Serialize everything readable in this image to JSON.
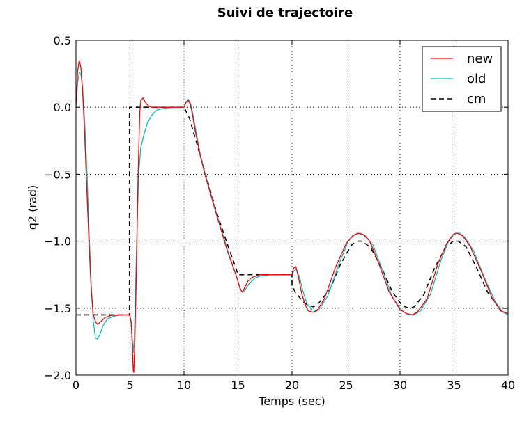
{
  "chart_data": {
    "type": "line",
    "title": "Suivi de trajectoire",
    "xlabel": "Temps (sec)",
    "ylabel": "q2 (rad)",
    "xlim": [
      0,
      40
    ],
    "ylim": [
      -2.0,
      0.5
    ],
    "x_ticks": [
      0,
      5,
      10,
      15,
      20,
      25,
      30,
      35,
      40
    ],
    "x_tick_labels": [
      "0",
      "5",
      "10",
      "15",
      "20",
      "25",
      "30",
      "35",
      "40"
    ],
    "y_ticks": [
      0.5,
      0.0,
      -0.5,
      -1.0,
      -1.5,
      -2.0
    ],
    "y_tick_labels": [
      "0.5",
      "0.0",
      "−0.5",
      "−1.0",
      "−1.5",
      "−2.0"
    ],
    "grid": true,
    "legend_position": "top-right",
    "series": [
      {
        "name": "new",
        "color": "#ff0000",
        "dash": "solid",
        "points": [
          [
            0,
            0.02
          ],
          [
            0.15,
            0.27
          ],
          [
            0.3,
            0.35
          ],
          [
            0.45,
            0.3
          ],
          [
            0.6,
            0.15
          ],
          [
            0.8,
            -0.2
          ],
          [
            1.0,
            -0.6
          ],
          [
            1.2,
            -1.0
          ],
          [
            1.4,
            -1.35
          ],
          [
            1.6,
            -1.55
          ],
          [
            1.8,
            -1.6
          ],
          [
            2.0,
            -1.62
          ],
          [
            2.3,
            -1.6
          ],
          [
            2.7,
            -1.57
          ],
          [
            3.2,
            -1.555
          ],
          [
            4.0,
            -1.55
          ],
          [
            4.9,
            -1.55
          ],
          [
            5.0,
            -1.56
          ],
          [
            5.1,
            -1.6
          ],
          [
            5.2,
            -1.75
          ],
          [
            5.3,
            -1.97
          ],
          [
            5.35,
            -1.98
          ],
          [
            5.45,
            -1.75
          ],
          [
            5.6,
            -1.2
          ],
          [
            5.75,
            -0.5
          ],
          [
            5.9,
            -0.05
          ],
          [
            6.0,
            0.05
          ],
          [
            6.2,
            0.07
          ],
          [
            6.4,
            0.04
          ],
          [
            6.7,
            0.01
          ],
          [
            7.0,
            0.0
          ],
          [
            8.0,
            0.0
          ],
          [
            9.5,
            0.0
          ],
          [
            10.0,
            0.0
          ],
          [
            10.2,
            0.04
          ],
          [
            10.4,
            0.05
          ],
          [
            10.6,
            0.02
          ],
          [
            10.8,
            -0.06
          ],
          [
            11.0,
            -0.16
          ],
          [
            11.5,
            -0.36
          ],
          [
            12.0,
            -0.52
          ],
          [
            13.0,
            -0.8
          ],
          [
            14.0,
            -1.07
          ],
          [
            14.8,
            -1.25
          ],
          [
            15.0,
            -1.3
          ],
          [
            15.2,
            -1.36
          ],
          [
            15.4,
            -1.38
          ],
          [
            15.6,
            -1.35
          ],
          [
            15.9,
            -1.3
          ],
          [
            16.3,
            -1.27
          ],
          [
            17.0,
            -1.25
          ],
          [
            18.0,
            -1.25
          ],
          [
            19.5,
            -1.25
          ],
          [
            20.0,
            -1.25
          ],
          [
            20.15,
            -1.2
          ],
          [
            20.35,
            -1.19
          ],
          [
            20.6,
            -1.27
          ],
          [
            20.9,
            -1.39
          ],
          [
            21.2,
            -1.47
          ],
          [
            21.5,
            -1.52
          ],
          [
            21.9,
            -1.53
          ],
          [
            22.3,
            -1.52
          ],
          [
            23.0,
            -1.43
          ],
          [
            24.0,
            -1.2
          ],
          [
            25.0,
            -1.02
          ],
          [
            25.6,
            -0.96
          ],
          [
            26.1,
            -0.94
          ],
          [
            26.6,
            -0.95
          ],
          [
            27.2,
            -1.0
          ],
          [
            28.0,
            -1.16
          ],
          [
            29.0,
            -1.38
          ],
          [
            30.0,
            -1.51
          ],
          [
            30.6,
            -1.54
          ],
          [
            31.1,
            -1.55
          ],
          [
            31.6,
            -1.53
          ],
          [
            32.5,
            -1.43
          ],
          [
            33.5,
            -1.17
          ],
          [
            34.3,
            -1.02
          ],
          [
            34.9,
            -0.95
          ],
          [
            35.3,
            -0.94
          ],
          [
            35.8,
            -0.96
          ],
          [
            36.5,
            -1.04
          ],
          [
            37.5,
            -1.22
          ],
          [
            38.5,
            -1.42
          ],
          [
            39.3,
            -1.52
          ],
          [
            40.0,
            -1.54
          ]
        ]
      },
      {
        "name": "old",
        "color": "#00bfbf",
        "dash": "solid",
        "points": [
          [
            0,
            0.0
          ],
          [
            0.15,
            0.18
          ],
          [
            0.3,
            0.26
          ],
          [
            0.45,
            0.25
          ],
          [
            0.6,
            0.15
          ],
          [
            0.8,
            -0.1
          ],
          [
            1.0,
            -0.45
          ],
          [
            1.2,
            -0.9
          ],
          [
            1.4,
            -1.3
          ],
          [
            1.6,
            -1.6
          ],
          [
            1.8,
            -1.72
          ],
          [
            1.95,
            -1.73
          ],
          [
            2.2,
            -1.7
          ],
          [
            2.5,
            -1.63
          ],
          [
            2.9,
            -1.58
          ],
          [
            3.5,
            -1.56
          ],
          [
            4.2,
            -1.55
          ],
          [
            4.9,
            -1.55
          ],
          [
            5.0,
            -1.56
          ],
          [
            5.1,
            -1.6
          ],
          [
            5.2,
            -1.72
          ],
          [
            5.3,
            -1.83
          ],
          [
            5.4,
            -1.72
          ],
          [
            5.5,
            -1.4
          ],
          [
            5.65,
            -0.9
          ],
          [
            5.8,
            -0.5
          ],
          [
            6.0,
            -0.3
          ],
          [
            6.3,
            -0.2
          ],
          [
            6.6,
            -0.12
          ],
          [
            7.0,
            -0.06
          ],
          [
            7.5,
            -0.02
          ],
          [
            8.0,
            -0.01
          ],
          [
            9.0,
            0.0
          ],
          [
            10.0,
            0.0
          ],
          [
            10.2,
            0.04
          ],
          [
            10.4,
            0.06
          ],
          [
            10.6,
            0.03
          ],
          [
            10.8,
            -0.04
          ],
          [
            11.0,
            -0.13
          ],
          [
            11.5,
            -0.35
          ],
          [
            12.0,
            -0.51
          ],
          [
            13.0,
            -0.79
          ],
          [
            14.0,
            -1.06
          ],
          [
            14.8,
            -1.25
          ],
          [
            15.0,
            -1.3
          ],
          [
            15.2,
            -1.35
          ],
          [
            15.4,
            -1.38
          ],
          [
            15.6,
            -1.37
          ],
          [
            16.0,
            -1.32
          ],
          [
            16.5,
            -1.28
          ],
          [
            17.0,
            -1.26
          ],
          [
            18.0,
            -1.25
          ],
          [
            19.5,
            -1.25
          ],
          [
            20.0,
            -1.25
          ],
          [
            20.2,
            -1.22
          ],
          [
            20.4,
            -1.21
          ],
          [
            20.7,
            -1.27
          ],
          [
            21.0,
            -1.37
          ],
          [
            21.4,
            -1.47
          ],
          [
            21.8,
            -1.51
          ],
          [
            22.2,
            -1.52
          ],
          [
            22.6,
            -1.5
          ],
          [
            23.3,
            -1.41
          ],
          [
            24.3,
            -1.18
          ],
          [
            25.2,
            -1.0
          ],
          [
            25.8,
            -0.95
          ],
          [
            26.3,
            -0.94
          ],
          [
            26.8,
            -0.96
          ],
          [
            27.5,
            -1.03
          ],
          [
            28.3,
            -1.2
          ],
          [
            29.3,
            -1.42
          ],
          [
            30.2,
            -1.52
          ],
          [
            30.8,
            -1.55
          ],
          [
            31.3,
            -1.55
          ],
          [
            31.9,
            -1.52
          ],
          [
            32.8,
            -1.4
          ],
          [
            33.8,
            -1.14
          ],
          [
            34.5,
            -1.0
          ],
          [
            35.1,
            -0.94
          ],
          [
            35.5,
            -0.94
          ],
          [
            36.0,
            -0.97
          ],
          [
            36.8,
            -1.07
          ],
          [
            37.8,
            -1.27
          ],
          [
            38.8,
            -1.45
          ],
          [
            39.5,
            -1.53
          ],
          [
            40.0,
            -1.55
          ]
        ]
      },
      {
        "name": "cm",
        "color": "#000000",
        "dash": "dashed",
        "points": [
          [
            0,
            -1.55
          ],
          [
            4.95,
            -1.55
          ],
          [
            4.95,
            0.0
          ],
          [
            10.0,
            0.0
          ],
          [
            10.5,
            -0.08
          ],
          [
            11.0,
            -0.22
          ],
          [
            12.0,
            -0.5
          ],
          [
            13.0,
            -0.78
          ],
          [
            14.0,
            -1.02
          ],
          [
            14.8,
            -1.2
          ],
          [
            15.0,
            -1.25
          ],
          [
            20.0,
            -1.25
          ],
          [
            20.0,
            -1.33
          ],
          [
            20.3,
            -1.38
          ],
          [
            21.0,
            -1.45
          ],
          [
            21.5,
            -1.48
          ],
          [
            22.0,
            -1.49
          ],
          [
            22.5,
            -1.46
          ],
          [
            23.5,
            -1.36
          ],
          [
            24.5,
            -1.17
          ],
          [
            25.5,
            -1.03
          ],
          [
            26.0,
            -1.0
          ],
          [
            26.5,
            -1.0
          ],
          [
            27.3,
            -1.05
          ],
          [
            28.3,
            -1.2
          ],
          [
            29.3,
            -1.38
          ],
          [
            30.2,
            -1.48
          ],
          [
            30.8,
            -1.5
          ],
          [
            31.3,
            -1.49
          ],
          [
            32.2,
            -1.4
          ],
          [
            33.2,
            -1.2
          ],
          [
            34.2,
            -1.05
          ],
          [
            34.9,
            -1.0
          ],
          [
            35.4,
            -1.0
          ],
          [
            36.1,
            -1.04
          ],
          [
            37.1,
            -1.2
          ],
          [
            38.1,
            -1.38
          ],
          [
            39.0,
            -1.48
          ],
          [
            39.6,
            -1.5
          ],
          [
            40.0,
            -1.5
          ]
        ]
      }
    ]
  }
}
